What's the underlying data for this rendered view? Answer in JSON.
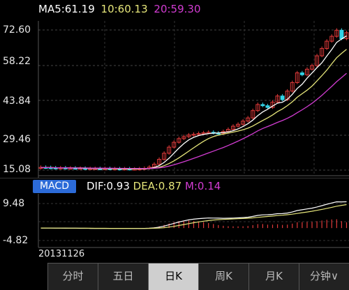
{
  "legend": {
    "ma5": "MA5:61.19",
    "ma10": "10:60.13",
    "ma20": "20:59.30"
  },
  "price_axis": [
    "72.60",
    "58.22",
    "43.84",
    "29.46",
    "15.08"
  ],
  "macd": {
    "button": "MACD",
    "dif": "DIF:0.93",
    "dea": "DEA:0.87",
    "m": "M:0.14",
    "axis": [
      "9.48",
      "-4.82"
    ]
  },
  "date": "20131126",
  "tabs": [
    "分时",
    "五日",
    "日K",
    "周K",
    "月K",
    "分钟∨"
  ],
  "active_tab": "日K",
  "colors": {
    "ma5": "#ffffff",
    "ma10": "#e6e67a",
    "ma20": "#d23cd2",
    "up": "#e03a3a",
    "down": "#33d3e6",
    "macd_button": "#2c6bd8"
  },
  "chart_data": {
    "type": "candlestick",
    "ylim": [
      15.08,
      72.6
    ],
    "y_ticks": [
      72.6,
      58.22,
      43.84,
      29.46,
      15.08
    ],
    "series_close": [
      16.2,
      16.1,
      16.0,
      15.9,
      16.0,
      15.9,
      15.9,
      15.8,
      15.8,
      15.7,
      15.7,
      15.7,
      15.6,
      15.7,
      15.6,
      15.6,
      15.5,
      15.6,
      15.5,
      15.5,
      15.6,
      15.8,
      16.3,
      17.5,
      19.5,
      22.0,
      24.5,
      26.5,
      28.0,
      28.8,
      29.5,
      29.8,
      30.1,
      30.4,
      30.6,
      30.3,
      30.2,
      30.9,
      31.8,
      33.1,
      33.9,
      35.2,
      36.5,
      39.5,
      42.0,
      41.5,
      40.8,
      43.0,
      45.5,
      44.0,
      47.5,
      51.0,
      55.0,
      54.2,
      56.5,
      58.0,
      62.0,
      65.0,
      68.0,
      70.0,
      72.5,
      69.0,
      71.5
    ],
    "macd_axis": [
      9.48,
      -4.82
    ]
  }
}
